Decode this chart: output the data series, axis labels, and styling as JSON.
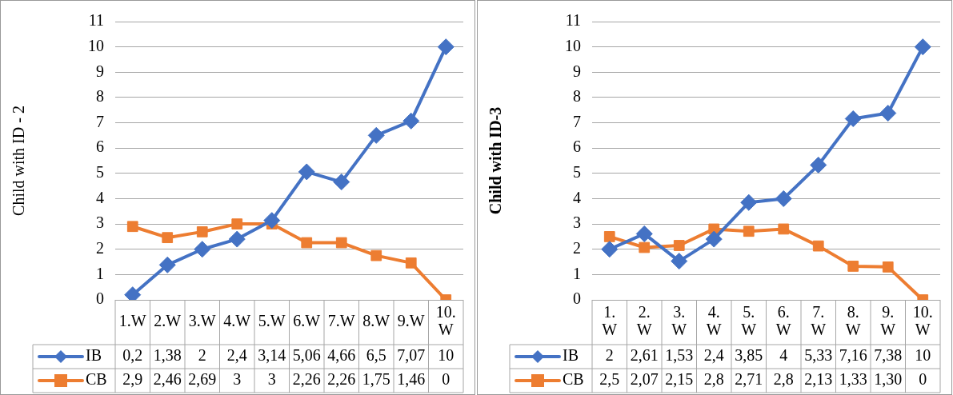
{
  "chart_data": [
    {
      "type": "line",
      "ylabel": "Child with ID - 2",
      "categories": [
        "1.W",
        "2.W",
        "3.W",
        "4.W",
        "5.W",
        "6.W",
        "7.W",
        "8.W",
        "9.W",
        "10. W"
      ],
      "series": [
        {
          "name": "IB",
          "color": "#4472c4",
          "marker": "diamond",
          "values": [
            0.2,
            1.38,
            2,
            2.4,
            3.14,
            5.06,
            4.66,
            6.5,
            7.07,
            10
          ],
          "value_labels": [
            "0,2",
            "1,38",
            "2",
            "2,4",
            "3,14",
            "5,06",
            "4,66",
            "6,5",
            "7,07",
            "10"
          ]
        },
        {
          "name": "CB",
          "color": "#ed7d31",
          "marker": "square",
          "values": [
            2.9,
            2.46,
            2.69,
            3,
            3,
            2.26,
            2.26,
            1.75,
            1.46,
            0
          ],
          "value_labels": [
            "2,9",
            "2,46",
            "2,69",
            "3",
            "3",
            "2,26",
            "2,26",
            "1,75",
            "1,46",
            "0"
          ]
        }
      ],
      "ylim": [
        0,
        11
      ],
      "yticks": [
        0,
        1,
        2,
        3,
        4,
        5,
        6,
        7,
        8,
        9,
        10,
        11
      ],
      "grid": "y",
      "legend": "bottom"
    },
    {
      "type": "line",
      "ylabel": "Child with ID-3",
      "categories": [
        "1. W",
        "2. W",
        "3. W",
        "4. W",
        "5. W",
        "6. W",
        "7. W",
        "8. W",
        "9. W",
        "10. W"
      ],
      "series": [
        {
          "name": "IB",
          "color": "#4472c4",
          "marker": "diamond",
          "values": [
            2,
            2.61,
            1.53,
            2.4,
            3.85,
            4,
            5.33,
            7.16,
            7.38,
            10
          ],
          "value_labels": [
            "2",
            "2,61",
            "1,53",
            "2,4",
            "3,85",
            "4",
            "5,33",
            "7,16",
            "7,38",
            "10"
          ]
        },
        {
          "name": "CB",
          "color": "#ed7d31",
          "marker": "square",
          "values": [
            2.5,
            2.07,
            2.15,
            2.8,
            2.71,
            2.8,
            2.13,
            1.33,
            1.3,
            0
          ],
          "value_labels": [
            "2,5",
            "2,07",
            "2,15",
            "2,8",
            "2,71",
            "2,8",
            "2,13",
            "1,33",
            "1,30",
            "0"
          ]
        }
      ],
      "ylim": [
        0,
        11
      ],
      "yticks": [
        0,
        1,
        2,
        3,
        4,
        5,
        6,
        7,
        8,
        9,
        10,
        11
      ],
      "grid": "y",
      "legend": "bottom"
    }
  ]
}
